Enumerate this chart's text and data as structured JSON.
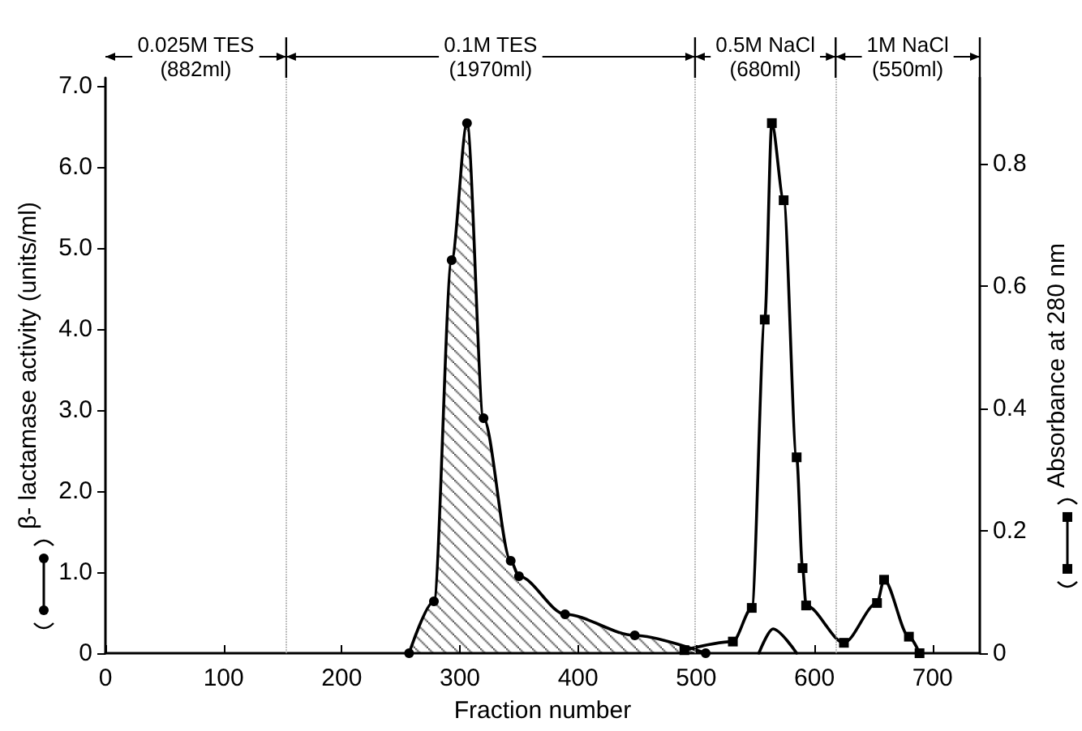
{
  "chart_data": {
    "type": "line",
    "xlabel": "Fraction number",
    "ylabel": "β- lactamase activity (units/ml)",
    "y2label": "Absorbance at 280 nm",
    "series": [
      {
        "type": "area",
        "color": "#000000",
        "marker": "circle",
        "x": [
          257,
          278,
          293,
          306,
          320,
          343,
          350,
          389,
          448,
          508
        ],
        "values": [
          0,
          0.64,
          4.85,
          6.54,
          2.9,
          1.14,
          0.95,
          0.48,
          0.22,
          0
        ]
      },
      {
        "color": "#000000",
        "marker": "none",
        "x": [
          553,
          565,
          585
        ],
        "values": [
          0,
          0.3,
          0
        ]
      },
      {
        "color": "#000000",
        "marker": "square",
        "axis": "y2",
        "x": [
          490,
          531,
          547,
          558,
          564,
          574,
          585,
          590,
          593,
          625,
          653,
          659,
          680,
          689
        ],
        "values": [
          0.005,
          0.019,
          0.074,
          0.545,
          0.866,
          0.74,
          0.32,
          0.139,
          0.078,
          0.017,
          0.082,
          0.12,
          0.027,
          0
        ]
      }
    ],
    "xlim": [
      0,
      740
    ],
    "xticks": [
      0,
      100,
      200,
      300,
      400,
      500,
      600,
      700
    ],
    "ylim": [
      0,
      7.1
    ],
    "yticks": [
      0,
      {
        "value": 1,
        "label": "1.0"
      },
      {
        "value": 2,
        "label": "2.0"
      },
      {
        "value": 3,
        "label": "3.0"
      },
      {
        "value": 4,
        "label": "4.0"
      },
      {
        "value": 5,
        "label": "5.0"
      },
      {
        "value": 6,
        "label": "6.0"
      },
      {
        "value": 7,
        "label": "7.0"
      }
    ],
    "y2lim": [
      0,
      0.94
    ],
    "y2ticks": [
      0,
      0.2,
      0.4,
      0.6,
      0.8
    ],
    "ref_lines": [
      {
        "axis": "x",
        "value": 153
      },
      {
        "axis": "x",
        "value": 499
      },
      {
        "axis": "x",
        "value": 618
      }
    ],
    "annotations": [
      "0.025M TES\n(882ml)",
      "0.1M TES\n(1970ml)",
      "0.5M NaCl\n(680ml)",
      "1M NaCl\n(550ml)"
    ],
    "grid": false,
    "line_style": "solid"
  }
}
